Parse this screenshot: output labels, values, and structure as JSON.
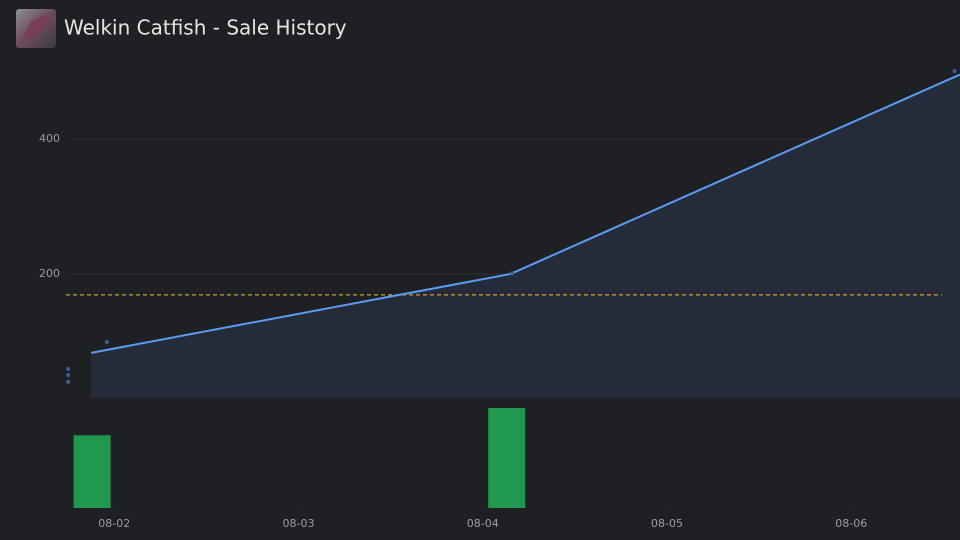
{
  "header": {
    "title": "Welkin Catfish - Sale History"
  },
  "chart_data": {
    "type": "line",
    "x": [
      1.875,
      4.15,
      6.59
    ],
    "values": [
      83,
      200,
      496
    ],
    "color": "#5b9cf5",
    "area_color": "#252b38",
    "points": {
      "x": [
        1.96,
        1.75,
        1.75,
        1.75,
        4.16,
        6.56
      ],
      "values": [
        99,
        59,
        50,
        40,
        201,
        501
      ],
      "color": "#3f5f9a"
    },
    "reference_line": {
      "value": 169,
      "color": "#c9a227"
    },
    "volume": {
      "x": [
        1.88,
        4.13
      ],
      "values": [
        8,
        11
      ],
      "color": "#21984f",
      "ylim": [
        0,
        11
      ]
    },
    "xlim": [
      1.38,
      6.59
    ],
    "xticks": [
      {
        "value": 2,
        "label": "08-02"
      },
      {
        "value": 3,
        "label": "08-03"
      },
      {
        "value": 4,
        "label": "08-04"
      },
      {
        "value": 5,
        "label": "08-05"
      },
      {
        "value": 6,
        "label": "08-06"
      }
    ],
    "ylim": [
      16,
      516
    ],
    "yticks": [
      200,
      400
    ],
    "grid": true
  }
}
